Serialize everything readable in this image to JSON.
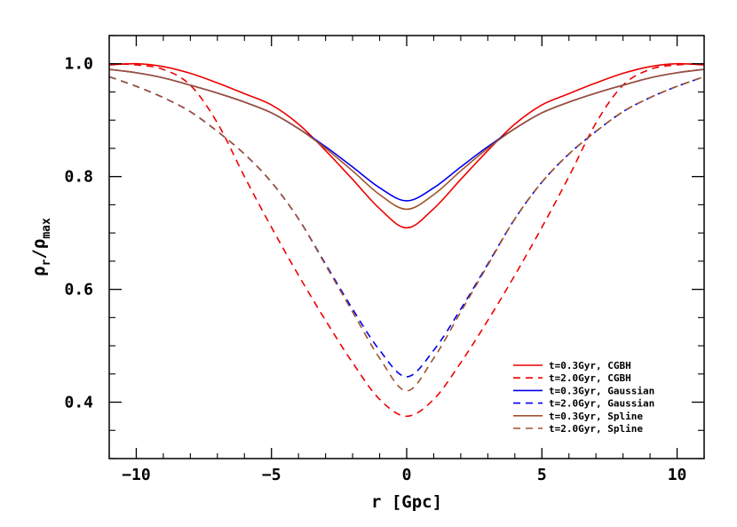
{
  "chart_data": {
    "type": "line",
    "xlabel": "r [Gpc]",
    "ylabel": {
      "base": "ρ",
      "sub1": "r",
      "slash": "/",
      "base2": "ρ",
      "sub2": "max"
    },
    "xlim": [
      -11,
      11
    ],
    "ylim": [
      0.3,
      1.05
    ],
    "xticks": [
      -10,
      -5,
      0,
      5,
      10
    ],
    "xtick_labels": [
      "−10",
      "−5",
      "0",
      "5",
      "10"
    ],
    "yticks": [
      0.4,
      0.6,
      0.8,
      1.0
    ],
    "ytick_labels": [
      "0.4",
      "0.6",
      "0.8",
      "1.0"
    ],
    "grid": false,
    "legend_position": "bottom-right",
    "x": [
      -11,
      -10,
      -9,
      -8,
      -7,
      -6,
      -5,
      -4,
      -3,
      -2,
      -1,
      0,
      1,
      2,
      3,
      4,
      5,
      6,
      7,
      8,
      9,
      10,
      11
    ],
    "series": [
      {
        "name": "t=0.3Gyr, CGBH",
        "color": "#ee0000",
        "dash": "solid",
        "values": [
          0.998,
          1.0,
          0.995,
          0.983,
          0.966,
          0.947,
          0.927,
          0.893,
          0.846,
          0.795,
          0.743,
          0.709,
          0.743,
          0.795,
          0.846,
          0.893,
          0.927,
          0.947,
          0.966,
          0.983,
          0.995,
          1.0,
          0.998
        ]
      },
      {
        "name": "t=2.0Gyr, CGBH",
        "color": "#ee0000",
        "dash": "dashed",
        "values": [
          1.0,
          0.998,
          0.99,
          0.962,
          0.895,
          0.8,
          0.71,
          0.625,
          0.545,
          0.47,
          0.405,
          0.375,
          0.405,
          0.47,
          0.545,
          0.625,
          0.71,
          0.8,
          0.895,
          0.962,
          0.99,
          0.998,
          1.0
        ]
      },
      {
        "name": "t=0.3Gyr, Gaussian",
        "color": "#0000ee",
        "dash": "solid",
        "values": [
          0.99,
          0.984,
          0.975,
          0.962,
          0.948,
          0.932,
          0.913,
          0.885,
          0.853,
          0.817,
          0.78,
          0.757,
          0.78,
          0.817,
          0.853,
          0.885,
          0.913,
          0.932,
          0.948,
          0.962,
          0.975,
          0.984,
          0.99
        ]
      },
      {
        "name": "t=2.0Gyr, Gaussian",
        "color": "#0000ee",
        "dash": "dashed",
        "values": [
          0.977,
          0.96,
          0.94,
          0.915,
          0.88,
          0.84,
          0.79,
          0.725,
          0.645,
          0.565,
          0.492,
          0.445,
          0.492,
          0.565,
          0.645,
          0.725,
          0.79,
          0.84,
          0.88,
          0.915,
          0.94,
          0.96,
          0.977
        ]
      },
      {
        "name": "t=0.3Gyr, Spline",
        "color": "#a0522d",
        "dash": "solid",
        "values": [
          0.99,
          0.984,
          0.975,
          0.962,
          0.948,
          0.932,
          0.913,
          0.885,
          0.85,
          0.81,
          0.768,
          0.742,
          0.768,
          0.81,
          0.85,
          0.885,
          0.913,
          0.932,
          0.948,
          0.962,
          0.975,
          0.984,
          0.99
        ]
      },
      {
        "name": "t=2.0Gyr, Spline",
        "color": "#a0522d",
        "dash": "dashed",
        "values": [
          0.977,
          0.96,
          0.94,
          0.915,
          0.88,
          0.84,
          0.79,
          0.725,
          0.643,
          0.56,
          0.478,
          0.42,
          0.478,
          0.56,
          0.643,
          0.725,
          0.79,
          0.84,
          0.88,
          0.915,
          0.94,
          0.96,
          0.977
        ]
      }
    ]
  }
}
